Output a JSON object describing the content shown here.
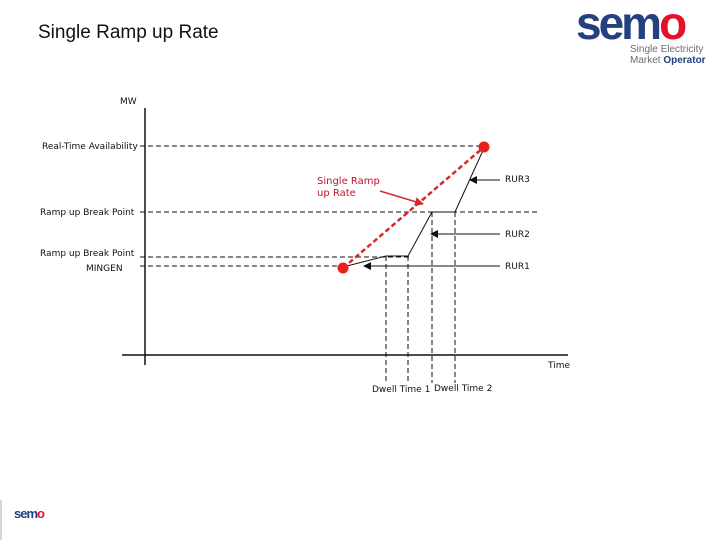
{
  "slide": {
    "title": "Single Ramp up Rate"
  },
  "logo": {
    "word_part1": "sem",
    "word_part2": "o",
    "sub_line1": "Single Electricity",
    "sub_line2_a": "Market ",
    "sub_line2_b": "Operator"
  },
  "footer_logo": {
    "word_part1": "sem",
    "word_part2": "o"
  },
  "diagram": {
    "y_axis_label": "MW",
    "x_axis_label": "Time",
    "levels": {
      "availability": "Real-Time Availability",
      "break_point_upper": "Ramp up Break Point",
      "break_point_lower": "Ramp up Break Point",
      "mingen": "MINGEN"
    },
    "rates": {
      "rur1": "RUR1",
      "rur2": "RUR2",
      "rur3": "RUR3"
    },
    "single_ramp": {
      "line1": "Single Ramp",
      "line2": "up Rate"
    },
    "dwell": {
      "time1": "Dwell Time 1",
      "time2": "Dwell Time 2"
    },
    "colors": {
      "line": "#111111",
      "single_ramp": "#d42a2a",
      "dot": "#e8201e"
    }
  }
}
